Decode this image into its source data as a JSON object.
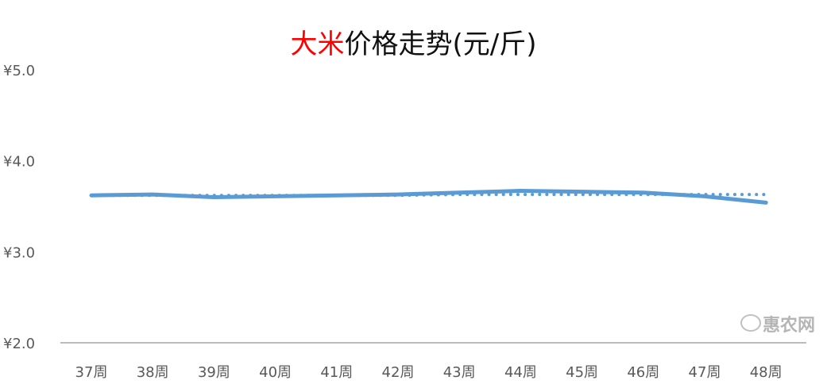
{
  "chart_data": {
    "type": "line",
    "title_highlight": "大米",
    "title_rest": "价格走势(元/斤)",
    "categories": [
      "37周",
      "38周",
      "39周",
      "40周",
      "41周",
      "42周",
      "43周",
      "44周",
      "45周",
      "46周",
      "47周",
      "48周"
    ],
    "series": [
      {
        "values": [
          3.62,
          3.63,
          3.6,
          3.61,
          3.62,
          3.63,
          3.65,
          3.67,
          3.66,
          3.65,
          3.61,
          3.54
        ],
        "style": "solid",
        "color": "#5b9bd5"
      },
      {
        "values": [
          3.62,
          3.62,
          3.62,
          3.62,
          3.62,
          3.62,
          3.63,
          3.63,
          3.63,
          3.63,
          3.63,
          3.63
        ],
        "style": "dotted",
        "color": "#5b9bd5"
      }
    ],
    "yticks": [
      "¥2.0",
      "¥3.0",
      "¥4.0",
      "¥5.0"
    ],
    "ylim": [
      2,
      5
    ],
    "grid": false,
    "title_highlight_color": "#ff0000"
  },
  "watermark": "惠农网"
}
